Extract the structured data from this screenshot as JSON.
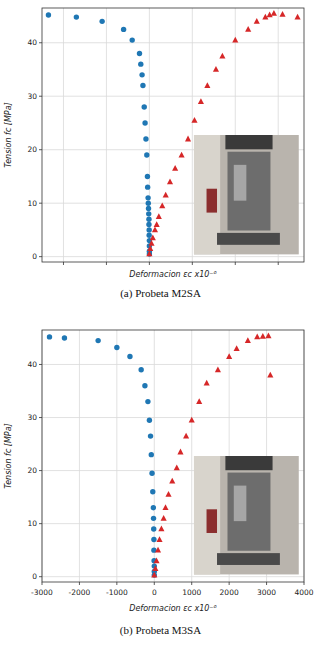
{
  "chart_data": [
    {
      "type": "scatter",
      "title": "(a) Probeta M2SA",
      "x_label": "Deformacion εc x10⁻⁶",
      "y_label": "Tension fc [MPa]",
      "xlim": [
        -2500,
        3600
      ],
      "ylim": [
        -1,
        46.5
      ],
      "xticks": [
        -2000,
        -1000,
        0,
        1000,
        2000,
        3000
      ],
      "yticks": [
        0,
        10,
        20,
        30,
        40
      ],
      "grid": true,
      "tick_labels": "y",
      "series": [
        {
          "color": "#1f77b4",
          "marker": "circle",
          "x": [
            0,
            0,
            0,
            0,
            -5,
            -5,
            -10,
            -10,
            -15,
            -20,
            -25,
            -30,
            -40,
            -45,
            -60,
            -80,
            -100,
            -120,
            -150,
            -170,
            -200,
            -230,
            -400,
            -600,
            -1100,
            -1700,
            -2350
          ],
          "values": [
            0.5,
            1,
            2,
            3,
            4,
            5,
            6,
            7,
            8,
            9,
            10,
            11,
            13,
            15,
            19,
            22,
            25,
            28,
            32,
            34,
            36,
            38,
            40.5,
            42.5,
            44,
            44.8,
            45.2
          ]
        },
        {
          "color": "#d62728",
          "marker": "triangle",
          "x": [
            0,
            20,
            50,
            80,
            130,
            170,
            220,
            300,
            380,
            480,
            600,
            750,
            900,
            1050,
            1200,
            1350,
            1550,
            1700,
            2000,
            2300,
            2500,
            2700,
            2800,
            2900,
            3100,
            3450
          ],
          "values": [
            0.5,
            1.5,
            2.5,
            3.5,
            5,
            6,
            7.5,
            9.5,
            11.5,
            14,
            16.5,
            19,
            22,
            25.5,
            29,
            32,
            35,
            37.5,
            40.5,
            42.5,
            44,
            44.8,
            45.2,
            45.5,
            45.3,
            44.8
          ]
        }
      ]
    },
    {
      "type": "scatter",
      "title": "(b) Probeta M3SA",
      "x_label": "Deformacion εc x10⁻⁶",
      "y_label": "Tension fc [MPa]",
      "xlim": [
        -3000,
        4000
      ],
      "ylim": [
        -1,
        46.5
      ],
      "xticks": [
        -3000,
        -2000,
        -1000,
        0,
        1000,
        2000,
        3000,
        4000
      ],
      "yticks": [
        0,
        10,
        20,
        30,
        40
      ],
      "grid": true,
      "series": [
        {
          "color": "#1f77b4",
          "marker": "circle",
          "x": [
            0,
            0,
            0,
            -5,
            -10,
            -10,
            -15,
            -20,
            -25,
            -40,
            -60,
            -80,
            -100,
            -130,
            -170,
            -250,
            -350,
            -650,
            -1000,
            -1500,
            -2400,
            -2800
          ],
          "values": [
            0.3,
            1,
            2,
            3,
            5,
            7,
            9,
            11,
            13,
            16,
            19.5,
            23,
            26.5,
            29.5,
            33,
            36,
            39,
            41.5,
            43.2,
            44.5,
            45,
            45.2
          ]
        },
        {
          "color": "#d62728",
          "marker": "triangle",
          "x": [
            0,
            30,
            60,
            100,
            140,
            190,
            250,
            300,
            380,
            480,
            600,
            700,
            850,
            1000,
            1200,
            1400,
            1700,
            2000,
            2200,
            2500,
            2750,
            2900,
            3050,
            3100
          ],
          "values": [
            0.3,
            1.5,
            3,
            5,
            7,
            9,
            11,
            13,
            15.5,
            18,
            20.5,
            23.5,
            26.5,
            29.5,
            33,
            36.5,
            39,
            41.5,
            43,
            44.5,
            45.2,
            45.3,
            45.4,
            38
          ]
        }
      ]
    }
  ]
}
